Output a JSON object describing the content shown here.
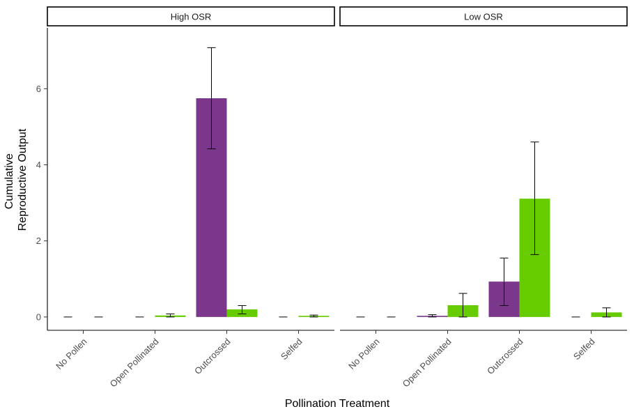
{
  "chart_data": {
    "type": "bar",
    "xlabel": "Pollination Treatment",
    "ylabel": [
      "Cumulative",
      "Reproductive Output"
    ],
    "categories": [
      "No Pollen",
      "Open Pollinated",
      "Outcrossed",
      "Selfed"
    ],
    "ylim": [
      -0.35,
      7.6
    ],
    "yticks": [
      0,
      2,
      4,
      6
    ],
    "legend": "none",
    "grid": false,
    "series_colors": [
      "#7b378c",
      "#66cc00"
    ],
    "panels": [
      {
        "title": "High OSR",
        "series": [
          {
            "color": "#7b378c",
            "values": [
              0,
              0,
              5.75,
              0
            ],
            "err_low": [
              0,
              0,
              4.42,
              0
            ],
            "err_high": [
              0,
              0,
              7.08,
              0
            ]
          },
          {
            "color": "#66cc00",
            "values": [
              0,
              0.04,
              0.2,
              0.03
            ],
            "err_low": [
              0,
              0.0,
              0.08,
              0.0
            ],
            "err_high": [
              0,
              0.08,
              0.3,
              0.05
            ]
          }
        ]
      },
      {
        "title": "Low OSR",
        "series": [
          {
            "color": "#7b378c",
            "values": [
              0,
              0.03,
              0.93,
              0
            ],
            "err_low": [
              0,
              0.0,
              0.3,
              0
            ],
            "err_high": [
              0,
              0.06,
              1.55,
              0
            ]
          },
          {
            "color": "#66cc00",
            "values": [
              0,
              0.31,
              3.11,
              0.12
            ],
            "err_low": [
              0,
              0.0,
              1.64,
              0.0
            ],
            "err_high": [
              0,
              0.62,
              4.6,
              0.24
            ]
          }
        ]
      }
    ]
  }
}
